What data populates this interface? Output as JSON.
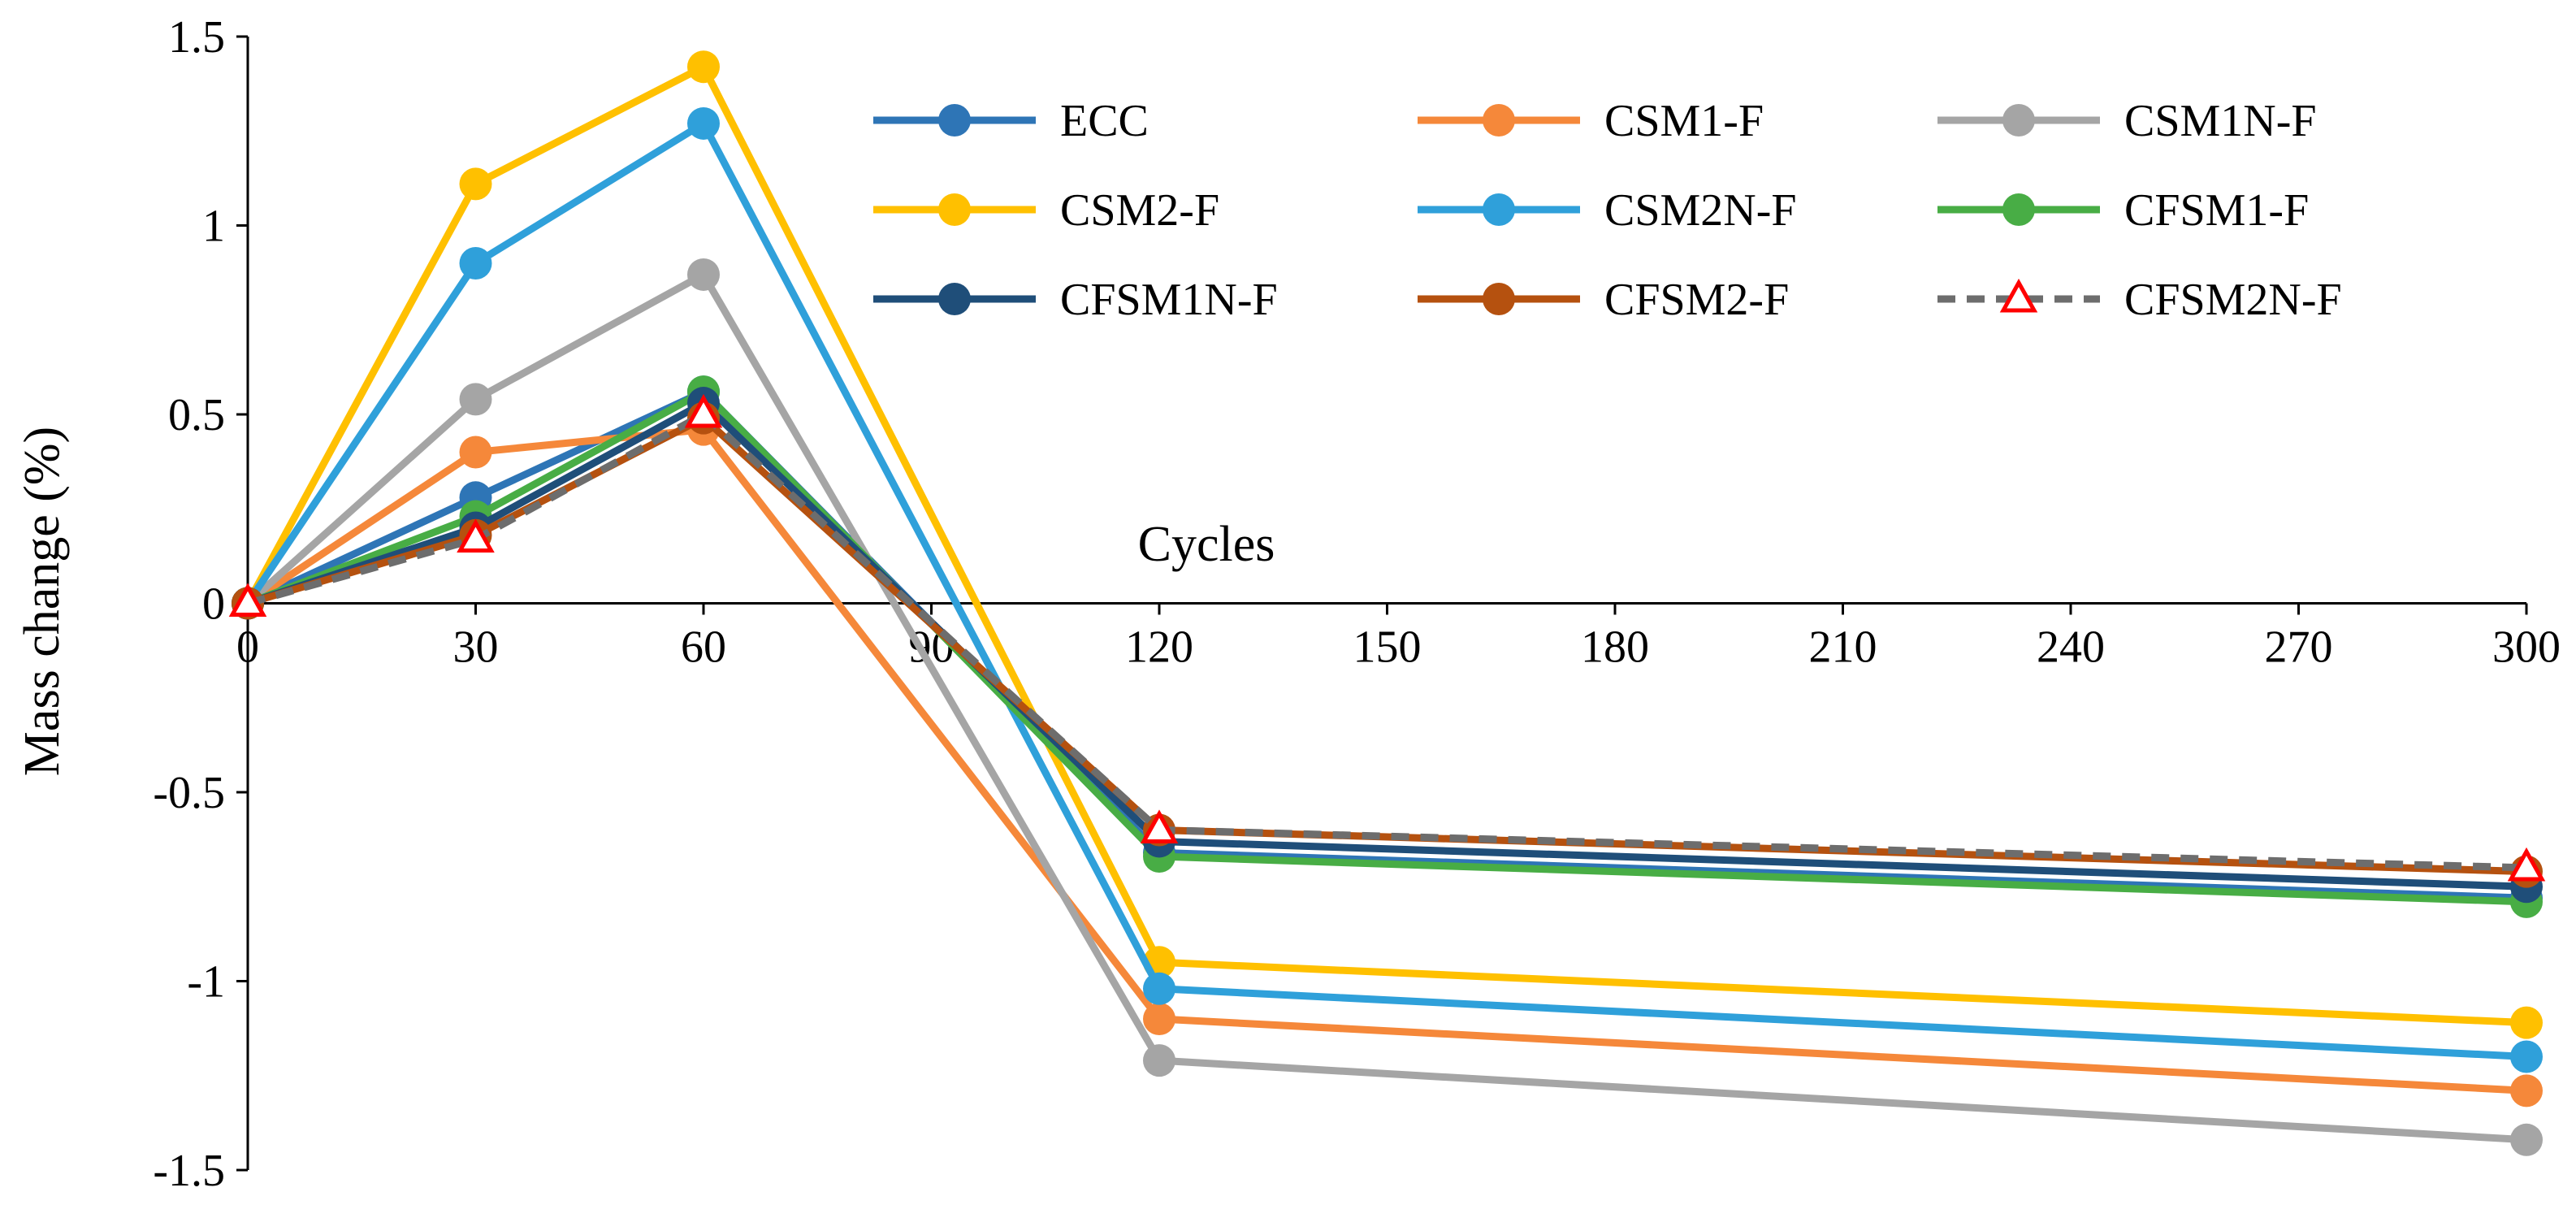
{
  "chart_data": {
    "type": "line",
    "title": "",
    "xlabel": "Cycles",
    "ylabel": "Mass change (%)",
    "xlim": [
      0,
      300
    ],
    "ylim": [
      -1.5,
      1.5
    ],
    "x_ticks": [
      0,
      30,
      60,
      90,
      120,
      150,
      180,
      210,
      240,
      270,
      300
    ],
    "x_tick_labels": [
      "0",
      "30",
      "60",
      "90",
      "120",
      "150",
      "180",
      "210",
      "240",
      "270",
      "300"
    ],
    "y_ticks": [
      -1.5,
      -1,
      -0.5,
      0,
      0.5,
      1,
      1.5
    ],
    "y_tick_labels": [
      "-1.5",
      "-1",
      "-0.5",
      "0",
      "0.5",
      "1",
      "1.5"
    ],
    "grid": false,
    "legend_position": "top-right",
    "x": [
      0,
      30,
      60,
      120,
      300
    ],
    "series": [
      {
        "name": "ECC",
        "color": "#2E75B6",
        "marker": "circle",
        "dash": false,
        "values": [
          0,
          0.28,
          0.56,
          -0.66,
          -0.78
        ]
      },
      {
        "name": "CSM1-F",
        "color": "#F5883A",
        "marker": "circle",
        "dash": false,
        "values": [
          0,
          0.4,
          0.46,
          -1.1,
          -1.29
        ]
      },
      {
        "name": "CSM1N-F",
        "color": "#A5A5A5",
        "marker": "circle",
        "dash": false,
        "values": [
          0,
          0.54,
          0.87,
          -1.21,
          -1.42
        ]
      },
      {
        "name": "CSM2-F",
        "color": "#FFC000",
        "marker": "circle",
        "dash": false,
        "values": [
          0,
          1.11,
          1.42,
          -0.95,
          -1.11
        ]
      },
      {
        "name": "CSM2N-F",
        "color": "#2FA0DA",
        "marker": "circle",
        "dash": false,
        "values": [
          0,
          0.9,
          1.27,
          -1.02,
          -1.2
        ]
      },
      {
        "name": "CFSM1-F",
        "color": "#48AD45",
        "marker": "circle",
        "dash": false,
        "values": [
          0,
          0.23,
          0.56,
          -0.67,
          -0.79
        ]
      },
      {
        "name": "CFSM1N-F",
        "color": "#1F4E79",
        "marker": "circle",
        "dash": false,
        "values": [
          0,
          0.2,
          0.53,
          -0.63,
          -0.75
        ]
      },
      {
        "name": "CFSM2-F",
        "color": "#B5510F",
        "marker": "circle",
        "dash": false,
        "values": [
          0,
          0.18,
          0.49,
          -0.6,
          -0.71
        ]
      },
      {
        "name": "CFSM2N-F",
        "color": "#6D6D6D",
        "marker": "triangle",
        "marker_color": "#FF0000",
        "dash": true,
        "values": [
          0,
          0.17,
          0.5,
          -0.6,
          -0.7
        ]
      }
    ]
  }
}
